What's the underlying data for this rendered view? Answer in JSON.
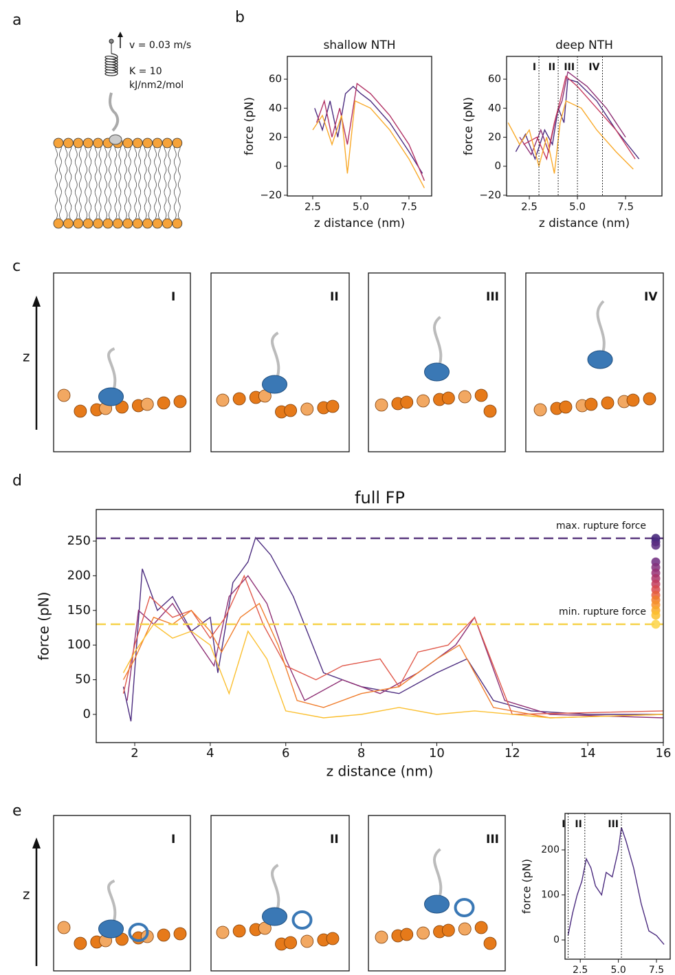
{
  "figure": {
    "panel_labels": [
      "a",
      "b",
      "c",
      "d",
      "e"
    ],
    "schematic": {
      "velocity": "v = 0.03 m/s",
      "spring_constant": "K = 10",
      "spring_units": "kJ/nm2/mol"
    },
    "snapshots_c": [
      "I",
      "II",
      "III",
      "IV"
    ],
    "snapshots_e": [
      "I",
      "II",
      "III"
    ],
    "axis_label_c": "z",
    "axis_label_e": "z"
  },
  "chart_data": [
    {
      "type": "line",
      "title": "shallow NTH",
      "xlabel": "z distance (nm)",
      "ylabel": "force (pN)",
      "xlim": [
        1.18,
        8.68
      ],
      "ylim": [
        -20.5,
        75.7
      ],
      "xticks": [
        2.5,
        {
          "value": 5,
          "label": "5.0"
        },
        7.5
      ],
      "yticks": [
        {
          "value": -20,
          "label": "−20"
        },
        0,
        20,
        40,
        60
      ],
      "series": [
        {
          "color": "#4a2a7e",
          "x": [
            2.6,
            3.0,
            3.4,
            3.8,
            4.2,
            4.6,
            5.0,
            5.5,
            6.5,
            7.5,
            8.2
          ],
          "values": [
            40,
            25,
            45,
            20,
            50,
            55,
            50,
            45,
            30,
            10,
            -5
          ]
        },
        {
          "color": "#b02f63",
          "x": [
            2.7,
            3.1,
            3.5,
            3.9,
            4.3,
            4.8,
            5.5,
            6.5,
            7.5,
            8.3
          ],
          "values": [
            30,
            45,
            20,
            40,
            15,
            57,
            50,
            35,
            15,
            -10
          ]
        },
        {
          "color": "#f9a928",
          "x": [
            2.5,
            3.0,
            3.5,
            4.0,
            4.3,
            4.7,
            5.5,
            6.5,
            7.5,
            8.3
          ],
          "values": [
            25,
            35,
            15,
            35,
            -5,
            45,
            40,
            25,
            5,
            -15
          ]
        }
      ]
    },
    {
      "type": "line",
      "title": "deep NTH",
      "xlabel": "z distance (nm)",
      "ylabel": "force (pN)",
      "xlim": [
        1.32,
        9.39
      ],
      "ylim": [
        -20.5,
        75.7
      ],
      "xticks": [
        2.5,
        {
          "value": 5,
          "label": "5.0"
        },
        7.5
      ],
      "yticks": [
        {
          "value": -20,
          "label": "−20"
        },
        0,
        20,
        40,
        60
      ],
      "markers": [
        {
          "x": 3.0,
          "label": "I"
        },
        {
          "x": 4.0,
          "label": "II"
        },
        {
          "x": 5.0,
          "label": "III"
        },
        {
          "x": 6.3,
          "label": "IV"
        }
      ],
      "series": [
        {
          "color": "#4a2a7e",
          "x": [
            1.8,
            2.3,
            2.8,
            3.3,
            3.7,
            4.0,
            4.3,
            4.5,
            5.0,
            6.0,
            7.0,
            8.2
          ],
          "values": [
            10,
            22,
            5,
            25,
            15,
            40,
            30,
            60,
            58,
            45,
            25,
            5
          ]
        },
        {
          "color": "#8e2f74",
          "x": [
            2.0,
            2.6,
            3.1,
            3.5,
            3.9,
            4.2,
            4.5,
            5.5,
            6.5,
            7.5
          ],
          "values": [
            20,
            8,
            25,
            10,
            35,
            45,
            65,
            55,
            40,
            20
          ]
        },
        {
          "color": "#c6385d",
          "x": [
            2.2,
            2.9,
            3.4,
            3.8,
            4.1,
            4.4,
            5.0,
            6.0,
            7.0,
            8.0
          ],
          "values": [
            15,
            20,
            5,
            30,
            45,
            62,
            55,
            40,
            25,
            5
          ]
        },
        {
          "color": "#f9a928",
          "x": [
            1.4,
            2.0,
            2.5,
            3.0,
            3.4,
            3.8,
            4.1,
            4.4,
            5.2,
            6.0,
            7.0,
            7.9
          ],
          "values": [
            30,
            15,
            25,
            0,
            20,
            -5,
            30,
            45,
            40,
            25,
            10,
            -2
          ]
        }
      ]
    },
    {
      "type": "line",
      "title": "full FP",
      "xlabel": "z distance (nm)",
      "ylabel": "force (pN)",
      "xlim": [
        0.98,
        16
      ],
      "ylim": [
        -40.7,
        295.6
      ],
      "xticks": [
        2,
        4,
        6,
        8,
        10,
        12,
        14,
        16
      ],
      "yticks": [
        0,
        50,
        100,
        150,
        200,
        250
      ],
      "hlines": [
        {
          "value": 254,
          "label": "max. rupture force",
          "color": "#5b3a7f"
        },
        {
          "value": 130,
          "label": "min. rupture force",
          "color": "#f6d24a"
        }
      ],
      "rupture_x": 15.8,
      "rupture_forces": [
        254,
        249,
        244,
        220,
        212,
        204,
        196,
        188,
        180,
        172,
        165,
        158,
        150,
        143,
        130
      ],
      "rupture_colors": [
        "#3e1f76",
        "#4a2a7e",
        "#5a2c80",
        "#6f2b7f",
        "#83307b",
        "#972f74",
        "#ab3468",
        "#c23c5d",
        "#d84a4e",
        "#e65f3c",
        "#f07c2a",
        "#f7922a",
        "#f9a928",
        "#fbbf2f",
        "#fbd347"
      ],
      "series": [
        {
          "color": "#4a2a7e",
          "x": [
            1.7,
            1.9,
            2.2,
            2.6,
            3.0,
            3.5,
            4.0,
            4.2,
            4.6,
            5.0,
            5.2,
            5.6,
            6.2,
            7.0,
            8.0,
            9.0,
            10.0,
            10.8,
            11.5,
            12.5,
            14,
            16
          ],
          "values": [
            40,
            -10,
            210,
            150,
            170,
            120,
            140,
            60,
            190,
            220,
            255,
            230,
            170,
            60,
            40,
            30,
            60,
            80,
            20,
            5,
            0,
            0
          ]
        },
        {
          "color": "#8e2f74",
          "x": [
            1.8,
            2.1,
            2.5,
            3.0,
            3.6,
            4.1,
            4.5,
            5.0,
            5.5,
            6.0,
            6.5,
            7.5,
            8.5,
            9.5,
            10.5,
            11.0,
            11.8,
            13,
            16
          ],
          "values": [
            20,
            150,
            130,
            160,
            110,
            70,
            170,
            200,
            160,
            80,
            20,
            50,
            30,
            60,
            100,
            140,
            20,
            0,
            -5
          ]
        },
        {
          "color": "#e0584a",
          "x": [
            1.7,
            2.0,
            2.4,
            3.0,
            3.5,
            4.0,
            4.4,
            4.9,
            5.4,
            6.0,
            6.8,
            7.5,
            8.5,
            9.0,
            9.5,
            10.3,
            11.0,
            12,
            16
          ],
          "values": [
            30,
            100,
            170,
            140,
            150,
            110,
            140,
            200,
            130,
            70,
            50,
            70,
            80,
            40,
            90,
            100,
            140,
            0,
            5
          ]
        },
        {
          "color": "#f07c2a",
          "x": [
            1.7,
            2.0,
            2.5,
            3.0,
            3.5,
            4.0,
            4.3,
            4.8,
            5.3,
            5.8,
            6.3,
            7.0,
            8.0,
            9.0,
            10.0,
            10.6,
            11.5,
            13,
            16
          ],
          "values": [
            50,
            80,
            140,
            130,
            150,
            120,
            90,
            140,
            160,
            100,
            20,
            10,
            30,
            40,
            80,
            100,
            10,
            -5,
            0
          ]
        },
        {
          "color": "#fbbf2f",
          "x": [
            1.7,
            2.0,
            2.5,
            3.0,
            3.5,
            4.0,
            4.5,
            5.0,
            5.5,
            6.0,
            7.0,
            8.0,
            9.0,
            10.0,
            11,
            13,
            16
          ],
          "values": [
            60,
            90,
            130,
            110,
            120,
            100,
            30,
            120,
            80,
            5,
            -5,
            0,
            10,
            0,
            5,
            -5,
            0
          ]
        }
      ]
    },
    {
      "type": "line",
      "xlabel": "z distance (nm)",
      "ylabel": "force (pN)",
      "xlim": [
        1.5,
        8.4
      ],
      "ylim": [
        -42.7,
        281
      ],
      "xticks": [
        2.5,
        {
          "value": 5,
          "label": "5.0"
        },
        7.5
      ],
      "yticks": [
        0,
        100,
        200
      ],
      "markers": [
        {
          "x": 1.7,
          "label": "I"
        },
        {
          "x": 2.8,
          "label": "II"
        },
        {
          "x": 5.2,
          "label": "III"
        }
      ],
      "series": [
        {
          "color": "#4a2a7e",
          "x": [
            1.7,
            2.0,
            2.3,
            2.6,
            2.9,
            3.2,
            3.5,
            3.9,
            4.2,
            4.6,
            5.0,
            5.2,
            5.5,
            6.0,
            6.5,
            7.0,
            7.5,
            8.0
          ],
          "values": [
            10,
            60,
            100,
            130,
            180,
            160,
            120,
            100,
            150,
            140,
            200,
            250,
            220,
            160,
            80,
            20,
            10,
            -10
          ]
        }
      ]
    }
  ]
}
